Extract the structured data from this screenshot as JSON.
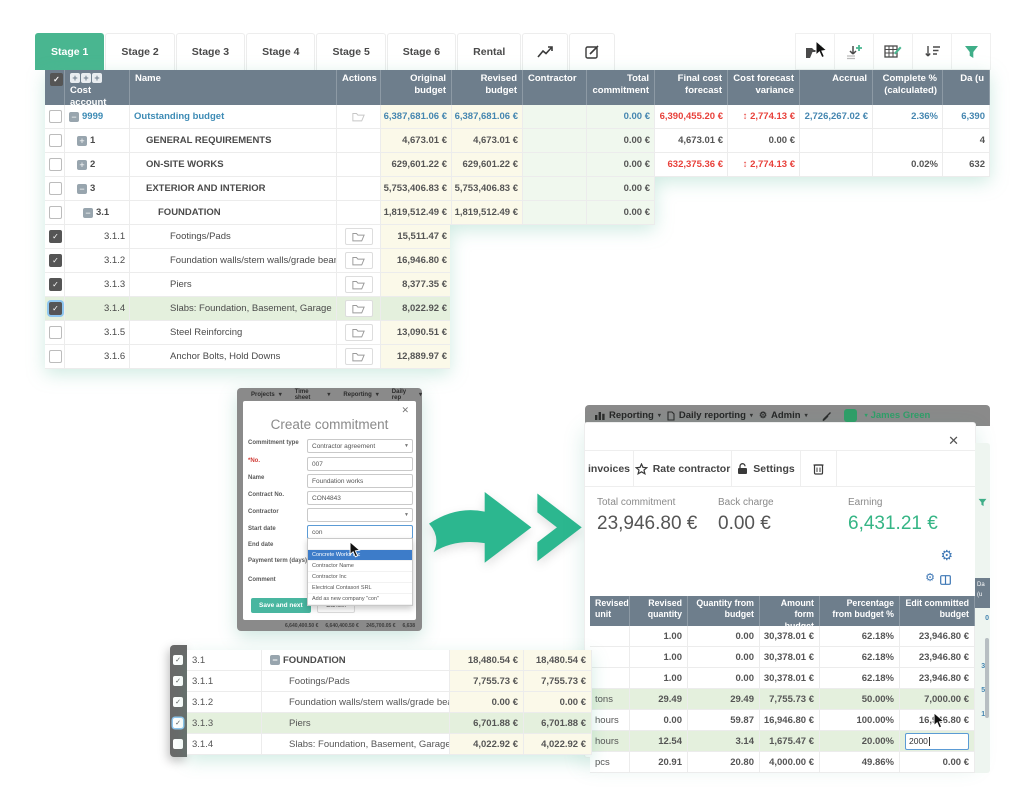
{
  "tabs": {
    "stages": [
      {
        "label": "Stage 1",
        "cls": "active"
      },
      {
        "label": "Stage 2",
        "cls": ""
      },
      {
        "label": "Stage 3",
        "cls": ""
      },
      {
        "label": "Stage 4",
        "cls": ""
      },
      {
        "label": "Stage 5",
        "cls": ""
      },
      {
        "label": "Stage 6",
        "cls": ""
      },
      {
        "label": "Rental",
        "cls": ""
      }
    ]
  },
  "colors": {
    "accent_green": "#49b690",
    "header_slate": "#6e7e8c",
    "value_blue": "#4586b0",
    "alert_red": "#e8403a",
    "earning_green": "#35b585",
    "row_highlight": "#e4f0dd"
  },
  "icons": {
    "toolbar": [
      "add-folder",
      "import-rows",
      "edit-table",
      "sort",
      "filter-funnel"
    ],
    "variance": "up-down-arrow"
  },
  "budget_table": {
    "headers": {
      "cost_account": "Cost account",
      "name": "Name",
      "actions": "Actions",
      "original": "Original budget",
      "revised": "Revised budget",
      "contractor": "Contractor",
      "commitment": "Total commitment",
      "final": "Final cost forecast",
      "variance": "Cost forecast variance",
      "accrual": "Accrual",
      "complete": "Complete % (calculated)",
      "last": "Da (u"
    },
    "rows": [
      {
        "row_cls": "ind0",
        "cb": "",
        "exp": "minus",
        "code": "9999",
        "name": "Outstanding budget",
        "name_cls": "link",
        "folder": "icon",
        "cells": [
          {
            "v": "6,387,681.06 €",
            "c": "c-blue"
          },
          {
            "v": "6,387,681.06 €",
            "c": "c-blue"
          },
          {
            "v": "",
            "c": ""
          },
          {
            "v": "0.00 €",
            "c": "c-blue"
          },
          {
            "v": "6,390,455.20 €",
            "c": "c-redb"
          },
          {
            "v": "2,774.13 €",
            "c": "c-redar"
          },
          {
            "v": "2,726,267.02 €",
            "c": "c-blue"
          },
          {
            "v": "2.36%",
            "c": "c-blue"
          },
          {
            "v": "6,390",
            "c": "c-blue"
          }
        ]
      },
      {
        "row_cls": "ind1",
        "cb": "",
        "exp": "plus",
        "code": "1",
        "name": "GENERAL REQUIREMENTS",
        "name_cls": "boldname",
        "folder": "",
        "cells": [
          {
            "v": "4,673.01 €",
            "c": ""
          },
          {
            "v": "4,673.01 €",
            "c": ""
          },
          {
            "v": "",
            "c": ""
          },
          {
            "v": "0.00 €",
            "c": ""
          },
          {
            "v": "4,673.01 €",
            "c": ""
          },
          {
            "v": "0.00 €",
            "c": ""
          },
          {
            "v": "",
            "c": ""
          },
          {
            "v": "",
            "c": ""
          },
          {
            "v": "4",
            "c": ""
          }
        ]
      },
      {
        "row_cls": "ind1",
        "cb": "",
        "exp": "plus",
        "code": "2",
        "name": "ON-SITE WORKS",
        "name_cls": "boldname",
        "folder": "",
        "cells": [
          {
            "v": "629,601.22 €",
            "c": ""
          },
          {
            "v": "629,601.22 €",
            "c": ""
          },
          {
            "v": "",
            "c": ""
          },
          {
            "v": "0.00 €",
            "c": ""
          },
          {
            "v": "632,375.36 €",
            "c": "c-redb"
          },
          {
            "v": "2,774.13 €",
            "c": "c-redar"
          },
          {
            "v": "",
            "c": ""
          },
          {
            "v": "0.02%",
            "c": ""
          },
          {
            "v": "632",
            "c": ""
          }
        ]
      },
      {
        "row_cls": "ind1",
        "cb": "",
        "exp": "minus",
        "code": "3",
        "name": "EXTERIOR AND INTERIOR",
        "name_cls": "boldname",
        "folder": "",
        "cells": [
          {
            "v": "5,753,406.83 €",
            "c": ""
          },
          {
            "v": "5,753,406.83 €",
            "c": ""
          },
          {
            "v": "",
            "c": ""
          },
          {
            "v": "0.00 €",
            "c": ""
          },
          {
            "v": "",
            "c": ""
          },
          {
            "v": "",
            "c": ""
          },
          {
            "v": "",
            "c": ""
          },
          {
            "v": "",
            "c": ""
          },
          {
            "v": "",
            "c": ""
          }
        ]
      },
      {
        "row_cls": "ind2",
        "cb": "",
        "exp": "minus",
        "code": "3.1",
        "name": "FOUNDATION",
        "name_cls": "boldname",
        "folder": "",
        "cells": [
          {
            "v": "1,819,512.49 €",
            "c": ""
          },
          {
            "v": "1,819,512.49 €",
            "c": ""
          },
          {
            "v": "",
            "c": ""
          },
          {
            "v": "0.00 €",
            "c": ""
          },
          {
            "v": "",
            "c": ""
          },
          {
            "v": "",
            "c": ""
          },
          {
            "v": "",
            "c": ""
          },
          {
            "v": "",
            "c": ""
          },
          {
            "v": "",
            "c": ""
          }
        ]
      },
      {
        "row_cls": "ind3",
        "cb": "checked",
        "exp": "none",
        "code": "3.1.1",
        "name": "Footings/Pads",
        "name_cls": "",
        "folder": "btn",
        "cells": [
          {
            "v": "15,511.47 €",
            "c": ""
          },
          {
            "v": "",
            "c": ""
          },
          {
            "v": "",
            "c": ""
          },
          {
            "v": "",
            "c": ""
          },
          {
            "v": "",
            "c": ""
          },
          {
            "v": "",
            "c": ""
          },
          {
            "v": "",
            "c": ""
          },
          {
            "v": "",
            "c": ""
          },
          {
            "v": "",
            "c": ""
          }
        ]
      },
      {
        "row_cls": "ind3",
        "cb": "checked",
        "exp": "none",
        "code": "3.1.2",
        "name": "Foundation walls/stem walls/grade beams",
        "name_cls": "",
        "folder": "btn",
        "cells": [
          {
            "v": "16,946.80 €",
            "c": ""
          },
          {
            "v": "",
            "c": ""
          },
          {
            "v": "",
            "c": ""
          },
          {
            "v": "",
            "c": ""
          },
          {
            "v": "",
            "c": ""
          },
          {
            "v": "",
            "c": ""
          },
          {
            "v": "",
            "c": ""
          },
          {
            "v": "",
            "c": ""
          },
          {
            "v": "",
            "c": ""
          }
        ]
      },
      {
        "row_cls": "ind3",
        "cb": "checked",
        "exp": "none",
        "code": "3.1.3",
        "name": "Piers",
        "name_cls": "",
        "folder": "btn",
        "cells": [
          {
            "v": "8,377.35 €",
            "c": ""
          },
          {
            "v": "",
            "c": ""
          },
          {
            "v": "",
            "c": ""
          },
          {
            "v": "",
            "c": ""
          },
          {
            "v": "",
            "c": ""
          },
          {
            "v": "",
            "c": ""
          },
          {
            "v": "",
            "c": ""
          },
          {
            "v": "",
            "c": ""
          },
          {
            "v": "",
            "c": ""
          }
        ]
      },
      {
        "row_cls": "ind3 green",
        "cb": "checked focus",
        "exp": "none",
        "code": "3.1.4",
        "name": "Slabs: Foundation, Basement, Garage",
        "name_cls": "",
        "folder": "btn",
        "cells": [
          {
            "v": "8,022.92 €",
            "c": ""
          },
          {
            "v": "",
            "c": ""
          },
          {
            "v": "",
            "c": ""
          },
          {
            "v": "",
            "c": ""
          },
          {
            "v": "",
            "c": ""
          },
          {
            "v": "",
            "c": ""
          },
          {
            "v": "",
            "c": ""
          },
          {
            "v": "",
            "c": ""
          },
          {
            "v": "",
            "c": ""
          }
        ]
      },
      {
        "row_cls": "ind3",
        "cb": "",
        "exp": "none",
        "code": "3.1.5",
        "name": "Steel Reinforcing",
        "name_cls": "",
        "folder": "btn",
        "cells": [
          {
            "v": "13,090.51 €",
            "c": ""
          },
          {
            "v": "",
            "c": ""
          },
          {
            "v": "",
            "c": ""
          },
          {
            "v": "",
            "c": ""
          },
          {
            "v": "",
            "c": ""
          },
          {
            "v": "",
            "c": ""
          },
          {
            "v": "",
            "c": ""
          },
          {
            "v": "",
            "c": ""
          },
          {
            "v": "",
            "c": ""
          }
        ]
      },
      {
        "row_cls": "ind3",
        "cb": "",
        "exp": "none",
        "code": "3.1.6",
        "name": "Anchor Bolts, Hold Downs",
        "name_cls": "",
        "folder": "btn",
        "cells": [
          {
            "v": "12,889.97 €",
            "c": ""
          },
          {
            "v": "",
            "c": ""
          },
          {
            "v": "",
            "c": ""
          },
          {
            "v": "",
            "c": ""
          },
          {
            "v": "",
            "c": ""
          },
          {
            "v": "",
            "c": ""
          },
          {
            "v": "",
            "c": ""
          },
          {
            "v": "",
            "c": ""
          },
          {
            "v": "",
            "c": ""
          }
        ]
      }
    ]
  },
  "create_modal": {
    "nav_items": [
      {
        "label": "Projects"
      },
      {
        "label": "Time sheet"
      },
      {
        "label": "Reporting"
      },
      {
        "label": "Daily rep"
      }
    ],
    "title": "Create commitment",
    "fields": [
      {
        "label": "Commitment type",
        "value": "Contractor agreement",
        "cls": "",
        "boxcls": "select"
      },
      {
        "label": "*No.",
        "value": "007",
        "cls": "req",
        "boxcls": ""
      },
      {
        "label": "Name",
        "value": "Foundation works",
        "cls": "",
        "boxcls": ""
      },
      {
        "label": "Contract No.",
        "value": "CON4843",
        "cls": "",
        "boxcls": ""
      },
      {
        "label": "Contractor",
        "value": "",
        "cls": "",
        "boxcls": "select"
      },
      {
        "label": "Start date",
        "value": "con",
        "cls": "focus",
        "boxcls": ""
      }
    ],
    "ghost_labels": [
      {
        "label": "End date"
      },
      {
        "label": "Payment term (days)"
      },
      {
        "label": "Comment"
      }
    ],
    "dropdown": {
      "options": [
        {
          "t": " ",
          "cls": ""
        },
        {
          "t": "Concrete Works Inc",
          "cls": "sel"
        },
        {
          "t": "Contractor Name",
          "cls": ""
        },
        {
          "t": "Contractor Inc",
          "cls": ""
        },
        {
          "t": "Electrical Contasori SRL",
          "cls": ""
        },
        {
          "t": "Add as new company \"con\"",
          "cls": ""
        }
      ]
    },
    "buttons": {
      "save": "Save and next",
      "cancel": "Cancel"
    },
    "footer_fragments": [
      "6,640,400.50 €",
      "6,640,400.50 €",
      "245,700.05 €",
      "6,638"
    ]
  },
  "commitment_panel": {
    "nav": {
      "items": [
        {
          "label": "Reporting"
        },
        {
          "label": "Daily reporting"
        },
        {
          "label": "Admin"
        }
      ],
      "user": "James Green"
    },
    "tabs": [
      {
        "label": "invoices"
      },
      {
        "label": "Rate contractor"
      },
      {
        "label": "Settings"
      }
    ],
    "stats": [
      {
        "label": "Total commitment",
        "value": "23,946.80 €",
        "cls": ""
      },
      {
        "label": "Back charge",
        "value": "0.00 €",
        "cls": ""
      },
      {
        "label": "Earning",
        "value": "6,431.21 €",
        "cls": "green"
      }
    ],
    "table": {
      "headers": [
        "Revised unit",
        "Revised quantity",
        "Quantity from budget",
        "Amount form budget",
        "Percentage from budget %",
        "Edit committed budget"
      ],
      "rows": [
        {
          "hl": "",
          "unit": "",
          "rq": "1.00",
          "qb": "0.00",
          "ab": "30,378.01 €",
          "pb": "62.18%",
          "ecb": "23,946.80 €",
          "edit": "",
          "editcls": ""
        },
        {
          "hl": "",
          "unit": "",
          "rq": "1.00",
          "qb": "0.00",
          "ab": "30,378.01 €",
          "pb": "62.18%",
          "ecb": "23,946.80 €",
          "edit": "",
          "editcls": ""
        },
        {
          "hl": "",
          "unit": "",
          "rq": "1.00",
          "qb": "0.00",
          "ab": "30,378.01 €",
          "pb": "62.18%",
          "ecb": "23,946.80 €",
          "edit": "",
          "editcls": ""
        },
        {
          "hl": "green",
          "unit": "tons",
          "rq": "29.49",
          "qb": "29.49",
          "ab": "7,755.73 €",
          "pb": "50.00%",
          "ecb": "7,000.00 €",
          "edit": "",
          "editcls": ""
        },
        {
          "hl": "",
          "unit": "hours",
          "rq": "0.00",
          "qb": "59.87",
          "ab": "16,946.80 €",
          "pb": "100.00%",
          "ecb": "16,946.80 €",
          "edit": "",
          "editcls": ""
        },
        {
          "hl": "green",
          "unit": "hours",
          "rq": "12.54",
          "qb": "3.14",
          "ab": "1,675.47 €",
          "pb": "20.00%",
          "ecb": "",
          "edit": "2000",
          "editcls": "show"
        },
        {
          "hl": "",
          "unit": "pcs",
          "rq": "20.91",
          "qb": "20.80",
          "ab": "4,000.00 €",
          "pb": "49.86%",
          "ecb": "0.00 €",
          "edit": "",
          "editcls": ""
        }
      ]
    },
    "edge_fragments": {
      "header_l1": "Da",
      "header_l2": "(u",
      "values": [
        {
          "t": "0"
        },
        {
          "t": "4"
        },
        {
          "t": "32"
        },
        {
          "t": "53"
        },
        {
          "t": "19"
        }
      ]
    }
  },
  "bottom_table": {
    "rows": [
      {
        "row_cls": "lvl0",
        "exp": "minus",
        "code": "3.1",
        "name": "FOUNDATION",
        "a1": "18,480.54 €",
        "a2": "18,480.54 €"
      },
      {
        "row_cls": "",
        "exp": "none",
        "code": "3.1.1",
        "name": "Footings/Pads",
        "a1": "7,755.73 €",
        "a2": "7,755.73 €"
      },
      {
        "row_cls": "",
        "exp": "none",
        "code": "3.1.2",
        "name": "Foundation walls/stem walls/grade beams",
        "a1": "0.00 €",
        "a2": "0.00 €"
      },
      {
        "row_cls": "green",
        "exp": "none",
        "code": "3.1.3",
        "name": "Piers",
        "a1": "6,701.88 €",
        "a2": "6,701.88 €"
      },
      {
        "row_cls": "",
        "exp": "none",
        "code": "3.1.4",
        "name": "Slabs: Foundation, Basement, Garage",
        "a1": "4,022.92 €",
        "a2": "4,022.92 €"
      }
    ],
    "strip_checkboxes": [
      {
        "cls": "checked"
      },
      {
        "cls": "checked"
      },
      {
        "cls": "checked"
      },
      {
        "cls": "checked focus"
      },
      {
        "cls": ""
      }
    ]
  }
}
